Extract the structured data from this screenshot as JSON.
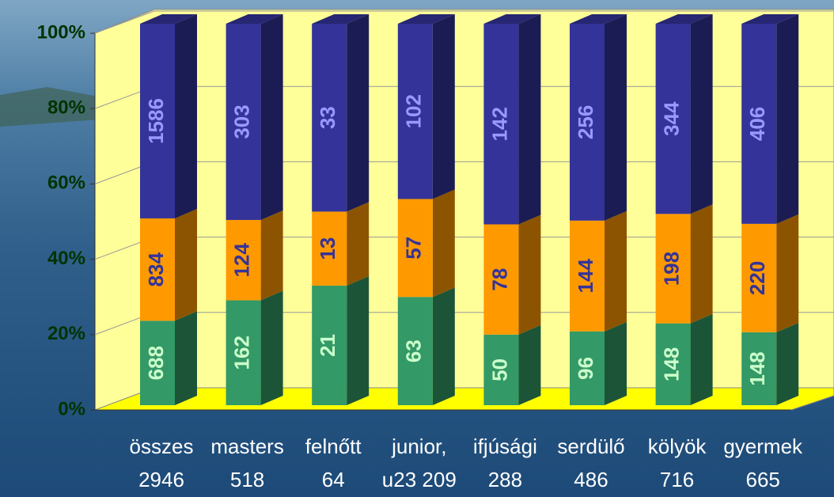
{
  "chart_data": {
    "type": "stacked_percent_bar_3d",
    "categories": [
      [
        "összes",
        "2946"
      ],
      [
        "masters",
        "518"
      ],
      [
        "felnőtt",
        "64"
      ],
      [
        "junior,",
        "u23 209"
      ],
      [
        "ifjúsági",
        "288"
      ],
      [
        "serdülő",
        "486"
      ],
      [
        "kölyök",
        "716"
      ],
      [
        "gyermek",
        "665"
      ]
    ],
    "series": [
      {
        "color": "#339966",
        "label_color": "#ccffcc",
        "values": [
          688,
          162,
          21,
          63,
          50,
          96,
          148,
          148
        ]
      },
      {
        "color": "#ff9900",
        "label_color": "#333399",
        "values": [
          834,
          124,
          13,
          57,
          78,
          144,
          198,
          220
        ]
      },
      {
        "color": "#333399",
        "label_color": "#9999ff",
        "values": [
          1586,
          303,
          33,
          102,
          142,
          256,
          344,
          406
        ]
      }
    ],
    "ylim": [
      0,
      100
    ],
    "yticks": [
      {
        "value": 0,
        "label": "0%"
      },
      {
        "value": 20,
        "label": "20%"
      },
      {
        "value": 40,
        "label": "40%"
      },
      {
        "value": 60,
        "label": "60%"
      },
      {
        "value": 80,
        "label": "80%"
      },
      {
        "value": 100,
        "label": "100%"
      }
    ],
    "grid": true
  }
}
